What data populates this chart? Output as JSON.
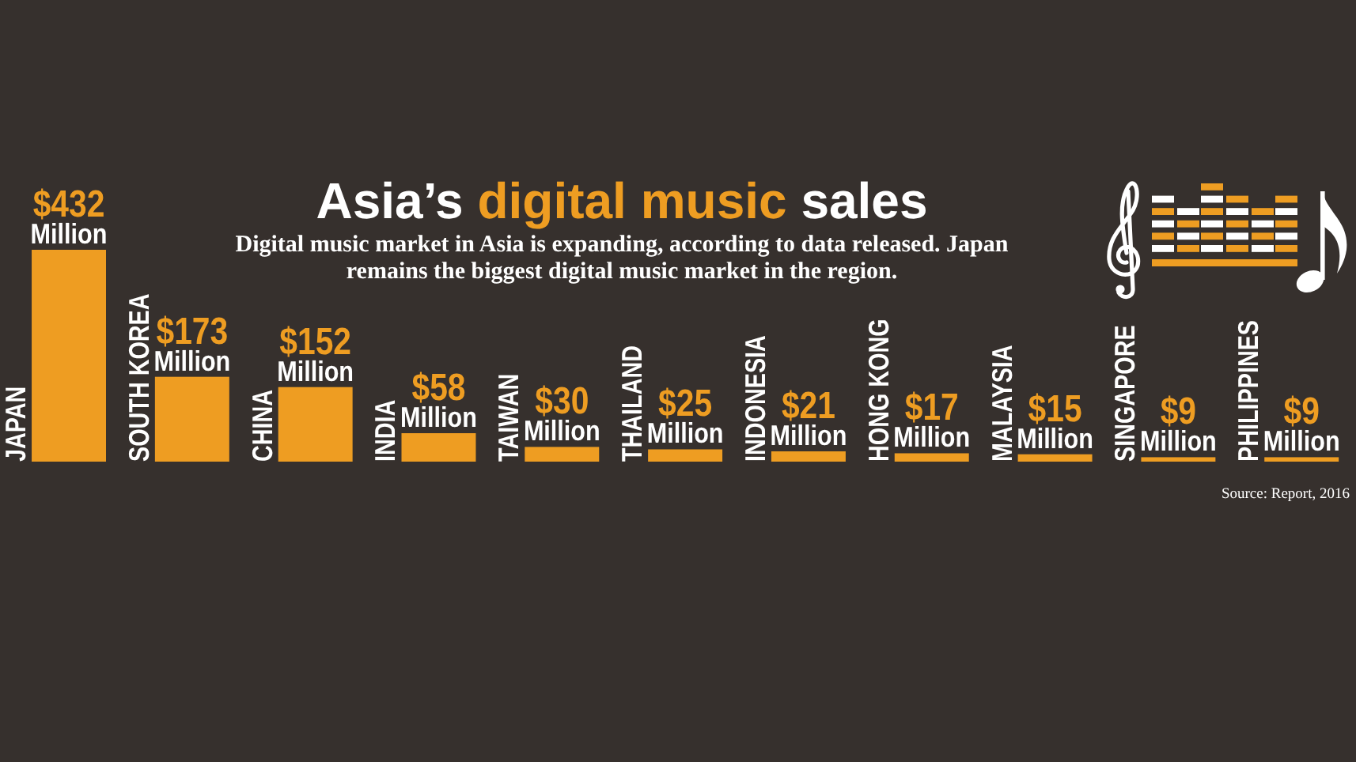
{
  "chart_data": {
    "type": "bar",
    "title": "Asia’s digital music sales",
    "subtitle": "Digital music market in Asia is expanding, according to data released. Japan remains the biggest digital music market in the region.",
    "categories": [
      "JAPAN",
      "SOUTH KOREA",
      "CHINA",
      "INDIA",
      "TAIWAN",
      "THAILAND",
      "INDONESIA",
      "HONG KONG",
      "MALAYSIA",
      "SINGAPORE",
      "PHILIPPINES"
    ],
    "values": [
      432,
      173,
      152,
      58,
      30,
      25,
      21,
      17,
      15,
      9,
      9
    ],
    "value_labels": [
      "$432 Million",
      "$173 Million",
      "$152 Million",
      "$58 Million",
      "$30 Million",
      "$25 Million",
      "$21 Million",
      "$17 Million",
      "$15 Million",
      "$9 Million",
      "$9 Million"
    ],
    "color": "#ee9d22",
    "annotations": [
      "Source: Report, 2016"
    ]
  }
}
